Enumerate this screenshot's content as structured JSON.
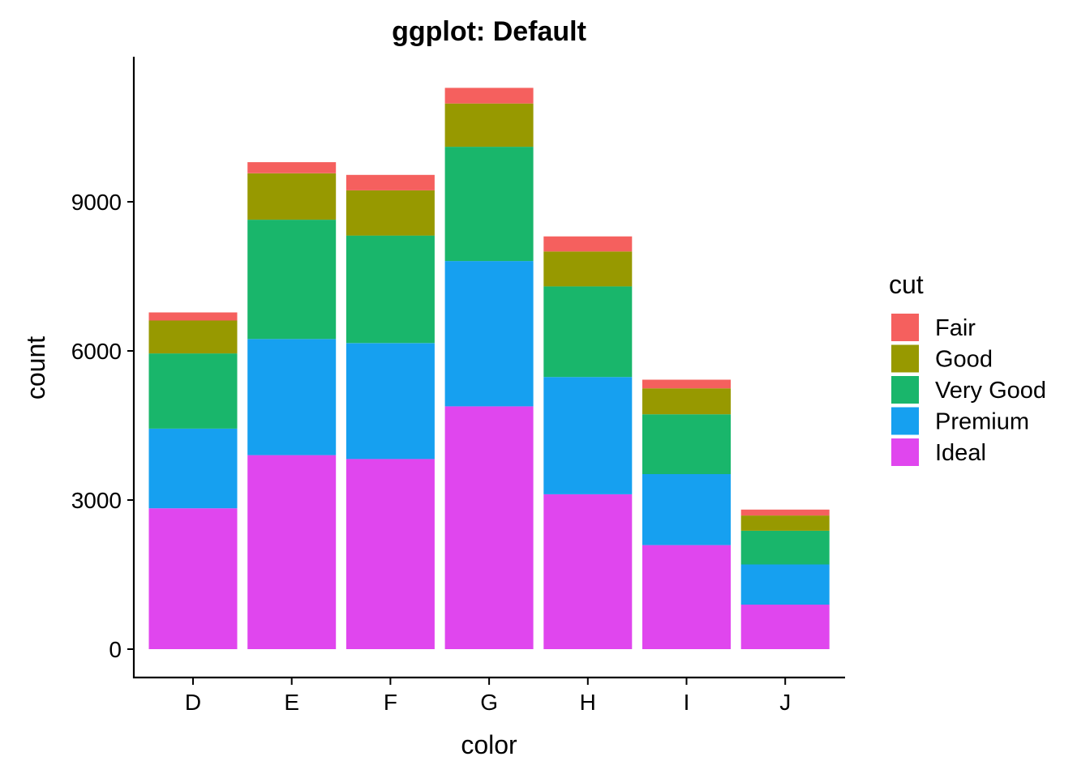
{
  "chart_data": {
    "type": "bar",
    "stacked": true,
    "title": "ggplot: Default",
    "xlabel": "color",
    "ylabel": "count",
    "categories": [
      "D",
      "E",
      "F",
      "G",
      "H",
      "I",
      "J"
    ],
    "ylim": [
      0,
      12000
    ],
    "yticks": [
      0,
      3000,
      6000,
      9000
    ],
    "ytick_labels": [
      "0",
      "3000",
      "6000",
      "9000"
    ],
    "grid": false,
    "legend": {
      "title": "cut",
      "position": "right"
    },
    "series": [
      {
        "name": "Ideal",
        "color": "#E046EE",
        "values": [
          2834,
          3903,
          3826,
          4884,
          3115,
          2093,
          896
        ]
      },
      {
        "name": "Premium",
        "color": "#16A0F0",
        "values": [
          1603,
          2337,
          2331,
          2924,
          2360,
          1428,
          808
        ]
      },
      {
        "name": "Very Good",
        "color": "#19B66B",
        "values": [
          1513,
          2400,
          2164,
          2299,
          1824,
          1204,
          678
        ]
      },
      {
        "name": "Good",
        "color": "#979900",
        "values": [
          662,
          933,
          909,
          871,
          702,
          522,
          307
        ]
      },
      {
        "name": "Fair",
        "color": "#F5605E",
        "values": [
          163,
          224,
          312,
          314,
          303,
          175,
          119
        ]
      }
    ],
    "legend_order": [
      "Fair",
      "Good",
      "Very Good",
      "Premium",
      "Ideal"
    ]
  }
}
